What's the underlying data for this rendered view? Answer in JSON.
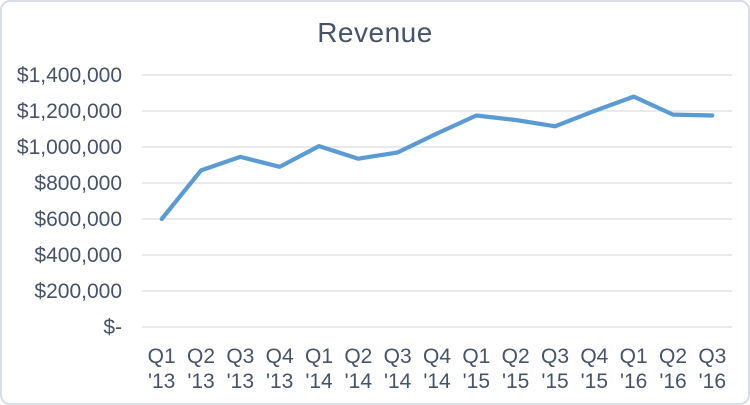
{
  "window": {
    "background": "#FFFFFF",
    "border_color": "#D7DEE6"
  },
  "chart_data": {
    "type": "line",
    "title": "Revenue",
    "categories": [
      "Q1 '13",
      "Q2 '13",
      "Q3 '13",
      "Q4 '13",
      "Q1 '14",
      "Q2 '14",
      "Q3 '14",
      "Q4 '14",
      "Q1 '15",
      "Q2 '15",
      "Q3 '15",
      "Q4 '15",
      "Q1 '16",
      "Q2 '16",
      "Q3 '16"
    ],
    "series": [
      {
        "name": "Revenue",
        "color": "#5B9BD5",
        "values": [
          600000,
          870000,
          945000,
          890000,
          1005000,
          935000,
          970000,
          1075000,
          1175000,
          1150000,
          1115000,
          1200000,
          1280000,
          1180000,
          1175000
        ]
      }
    ],
    "y_ticks": [
      {
        "label": "$1,400,000",
        "value": 1400000
      },
      {
        "label": "$1,200,000",
        "value": 1200000
      },
      {
        "label": "$1,000,000",
        "value": 1000000
      },
      {
        "label": "$800,000",
        "value": 800000
      },
      {
        "label": "$600,000",
        "value": 600000
      },
      {
        "label": "$400,000",
        "value": 400000
      },
      {
        "label": "$200,000",
        "value": 200000
      },
      {
        "label": "$-",
        "value": 0
      }
    ],
    "ylim": [
      0,
      1400000
    ],
    "xlabel": "",
    "ylabel": "",
    "grid": true,
    "legend": "none",
    "text_color": "#44546A",
    "grid_color": "#D9DDE3"
  }
}
